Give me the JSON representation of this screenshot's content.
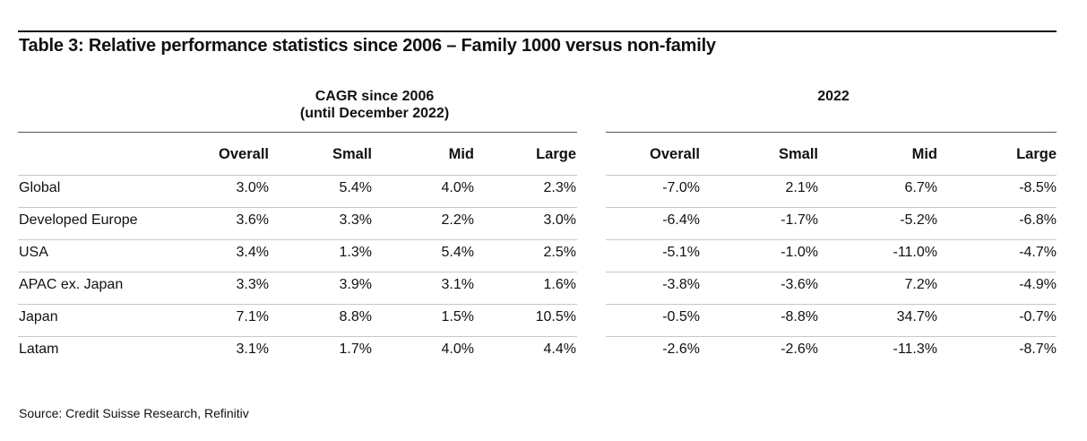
{
  "title": "Table 3: Relative performance statistics since 2006 – Family 1000 versus non-family",
  "groups": {
    "left_line1": "CAGR since 2006",
    "left_line2": "(until December 2022)",
    "right": "2022"
  },
  "columns": [
    "Overall",
    "Small",
    "Mid",
    "Large",
    "Overall",
    "Small",
    "Mid",
    "Large"
  ],
  "rows": [
    {
      "label": "Global",
      "values": [
        "3.0%",
        "5.4%",
        "4.0%",
        "2.3%",
        "-7.0%",
        "2.1%",
        "6.7%",
        "-8.5%"
      ]
    },
    {
      "label": "Developed Europe",
      "values": [
        "3.6%",
        "3.3%",
        "2.2%",
        "3.0%",
        "-6.4%",
        "-1.7%",
        "-5.2%",
        "-6.8%"
      ]
    },
    {
      "label": "USA",
      "values": [
        "3.4%",
        "1.3%",
        "5.4%",
        "2.5%",
        "-5.1%",
        "-1.0%",
        "-11.0%",
        "-4.7%"
      ]
    },
    {
      "label": "APAC ex. Japan",
      "values": [
        "3.3%",
        "3.9%",
        "3.1%",
        "1.6%",
        "-3.8%",
        "-3.6%",
        "7.2%",
        "-4.9%"
      ]
    },
    {
      "label": "Japan",
      "values": [
        "7.1%",
        "8.8%",
        "1.5%",
        "10.5%",
        "-0.5%",
        "-8.8%",
        "34.7%",
        "-0.7%"
      ]
    },
    {
      "label": "Latam",
      "values": [
        "3.1%",
        "1.7%",
        "4.0%",
        "4.4%",
        "-2.6%",
        "-2.6%",
        "-11.3%",
        "-8.7%"
      ]
    }
  ],
  "source": "Source: Credit Suisse Research, Refinitiv"
}
